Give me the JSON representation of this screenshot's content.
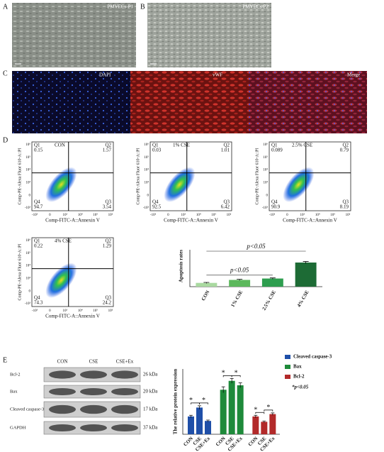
{
  "panel_labels": [
    "A",
    "B",
    "C",
    "D",
    "E"
  ],
  "micrographs": [
    "PMVECs-P1",
    "PMVECs-P2"
  ],
  "fluorescence": [
    "DAPI",
    "vWF",
    "Merge"
  ],
  "flow": {
    "x_label": "Comp-FITC-A::Annexin V",
    "y_label": "Comp-PE-Alexa Fluor 610-A::PI",
    "xticks": [
      "-10³",
      "0",
      "10³",
      "10⁴",
      "10⁵",
      "10⁶"
    ],
    "yticks": [
      "-10³",
      "0",
      "10³",
      "10⁴",
      "10⁵",
      "10⁶"
    ],
    "plots": [
      {
        "title": "CON",
        "quadrants": [
          {
            "name": "Q1",
            "value": 0.15
          },
          {
            "name": "Q2",
            "value": 1.57
          },
          {
            "name": "Q3",
            "value": 3.54
          },
          {
            "name": "Q4",
            "value": 94.7
          }
        ]
      },
      {
        "title": "1% CSE",
        "quadrants": [
          {
            "name": "Q1",
            "value": 0.03
          },
          {
            "name": "Q2",
            "value": 1.01
          },
          {
            "name": "Q3",
            "value": 6.42
          },
          {
            "name": "Q4",
            "value": 92.5
          }
        ]
      },
      {
        "title": "2.5% CSE",
        "quadrants": [
          {
            "name": "Q1",
            "value": 0.089
          },
          {
            "name": "Q2",
            "value": 0.79
          },
          {
            "name": "Q3",
            "value": 8.19
          },
          {
            "name": "Q4",
            "value": 90.9
          }
        ]
      },
      {
        "title": "4% CSE",
        "quadrants": [
          {
            "name": "Q1",
            "value": 0.22
          },
          {
            "name": "Q2",
            "value": 1.29
          },
          {
            "name": "Q3",
            "value": 24.2
          },
          {
            "name": "Q4",
            "value": 74.3
          }
        ]
      }
    ]
  },
  "blot": {
    "columns": [
      "CON",
      "CSE",
      "CSE+Ex"
    ],
    "rows": [
      {
        "name": "Bcl-2",
        "size": "26 kDa"
      },
      {
        "name": "Bax",
        "size": "20 kDa"
      },
      {
        "name": "Cleaved caspase-3",
        "size": "17 kDa"
      },
      {
        "name": "GAPDH",
        "size": "37 kDa"
      }
    ]
  },
  "chart_data": [
    {
      "type": "bar",
      "y_label": "Apoptosis rates",
      "categories": [
        "CON",
        "1% CSE",
        "2.5% CSE",
        "4% CSE"
      ],
      "values": [
        3.8,
        6.8,
        8.2,
        24.3
      ],
      "errors": [
        0.5,
        0.6,
        0.6,
        1.0
      ],
      "colors": [
        "#a9d9a0",
        "#5cb85c",
        "#2e9e4f",
        "#1d6b35"
      ],
      "ylim": [
        0,
        30
      ],
      "annotations": [
        "p<0.05",
        "p<0.05"
      ]
    },
    {
      "type": "grouped_bar",
      "y_label": "The relative protein expression",
      "categories": [
        "CON",
        "CSE",
        "CSE+Ex"
      ],
      "series": [
        {
          "name": "Cleaved caspase-3",
          "color": "#1f4fa8",
          "values": [
            0.6,
            0.9,
            0.45
          ],
          "errors": [
            0.04,
            0.06,
            0.03
          ],
          "marks": [
            "*",
            "*"
          ]
        },
        {
          "name": "Bax",
          "color": "#1e8a3a",
          "values": [
            1.5,
            1.8,
            1.65
          ],
          "errors": [
            0.1,
            0.08,
            0.08
          ],
          "marks": [
            "*",
            "*"
          ]
        },
        {
          "name": "Bcl-2",
          "color": "#b22a2a",
          "values": [
            0.6,
            0.42,
            0.68
          ],
          "errors": [
            0.04,
            0.03,
            0.04
          ],
          "marks": [
            "*",
            "*"
          ]
        }
      ],
      "ylim": [
        0,
        2.2
      ],
      "legend": "right",
      "annotation": "*p<0.05"
    }
  ]
}
